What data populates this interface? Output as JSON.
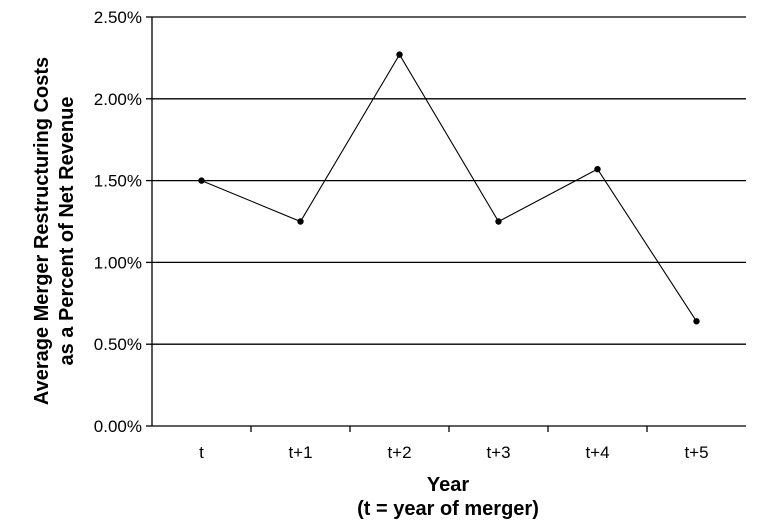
{
  "chart_data": {
    "type": "line",
    "title": "",
    "ylabel_line1": "Average Merger Restructuring Costs",
    "ylabel_line2": "as a Percent of Net Revenue",
    "xlabel_line1": "Year",
    "xlabel_line2": "(t = year of merger)",
    "categories": [
      "t",
      "t+1",
      "t+2",
      "t+3",
      "t+4",
      "t+5"
    ],
    "series": [
      {
        "values": [
          1.5,
          1.25,
          2.27,
          1.25,
          1.57,
          0.64
        ]
      }
    ],
    "y_unit": "%",
    "ylim": [
      0,
      2.5
    ],
    "y_ticks": [
      0,
      0.5,
      1.0,
      1.5,
      2.0,
      2.5
    ],
    "y_tick_labels": [
      "0.00%",
      "0.50%",
      "1.00%",
      "1.50%",
      "2.00%",
      "2.50%"
    ],
    "grid": true,
    "legend": "none",
    "colors": {
      "line": "#000000",
      "grid": "#000000",
      "marker": "#000000"
    }
  }
}
